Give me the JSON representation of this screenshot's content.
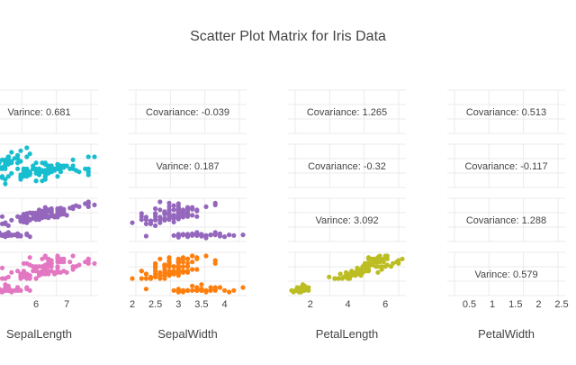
{
  "chart_data": {
    "type": "scatter",
    "title": "Scatter Plot Matrix for Iris Data",
    "variables": [
      "SepalLength",
      "SepalWidth",
      "PetalLength",
      "PetalWidth"
    ],
    "colors": {
      "row_1": "#4aa8e4",
      "row_2": "#17becf",
      "row_3": "#9467bd",
      "row_4_col_1": "#e377c2",
      "row_4_col_2": "#ff7f0e",
      "row_4_col_3": "#bcbd22"
    },
    "x_ticks": {
      "SepalLength": [
        "6",
        "7"
      ],
      "SepalWidth": [
        "2",
        "2.5",
        "3",
        "3.5",
        "4"
      ],
      "PetalLength": [
        "2",
        "4",
        "6"
      ],
      "PetalWidth": [
        "0.5",
        "1",
        "1.5",
        "2",
        "2.5"
      ]
    },
    "x_ranges": {
      "SepalLength": [
        4.3,
        7.9
      ],
      "SepalWidth": [
        2.0,
        4.4
      ],
      "PetalLength": [
        1.0,
        6.9
      ],
      "PetalWidth": [
        0.1,
        2.5
      ]
    },
    "y_ranges": {
      "SepalLength": [
        4.3,
        7.9
      ],
      "SepalWidth": [
        2.0,
        4.4
      ],
      "PetalLength": [
        1.0,
        6.9
      ],
      "PetalWidth": [
        0.1,
        2.5
      ]
    },
    "cells": [
      {
        "row": 1,
        "col": 1,
        "kind": "text",
        "text": "Varince: 0.681"
      },
      {
        "row": 1,
        "col": 2,
        "kind": "text",
        "text": "Covariance: -0.039"
      },
      {
        "row": 1,
        "col": 3,
        "kind": "text",
        "text": "Covariance: 1.265"
      },
      {
        "row": 1,
        "col": 4,
        "kind": "text",
        "text": "Covariance: 0.513"
      },
      {
        "row": 2,
        "col": 1,
        "kind": "scatter",
        "x": "SepalLength",
        "y": "SepalWidth"
      },
      {
        "row": 2,
        "col": 2,
        "kind": "text",
        "text": "Varince: 0.187"
      },
      {
        "row": 2,
        "col": 3,
        "kind": "text",
        "text": "Covariance: -0.32"
      },
      {
        "row": 2,
        "col": 4,
        "kind": "text",
        "text": "Covariance: -0.117"
      },
      {
        "row": 3,
        "col": 1,
        "kind": "scatter",
        "x": "SepalLength",
        "y": "PetalLength"
      },
      {
        "row": 3,
        "col": 2,
        "kind": "scatter",
        "x": "SepalWidth",
        "y": "PetalLength"
      },
      {
        "row": 3,
        "col": 3,
        "kind": "text",
        "text": "Varince: 3.092"
      },
      {
        "row": 3,
        "col": 4,
        "kind": "text",
        "text": "Covariance: 1.288"
      },
      {
        "row": 4,
        "col": 1,
        "kind": "scatter",
        "x": "SepalLength",
        "y": "PetalWidth"
      },
      {
        "row": 4,
        "col": 2,
        "kind": "scatter",
        "x": "SepalWidth",
        "y": "PetalWidth"
      },
      {
        "row": 4,
        "col": 3,
        "kind": "scatter",
        "x": "PetalLength",
        "y": "PetalWidth"
      },
      {
        "row": 4,
        "col": 4,
        "kind": "text",
        "text": "Varince: 0.579"
      }
    ],
    "points": [
      [
        5.1,
        3.5,
        1.4,
        0.2
      ],
      [
        4.9,
        3.0,
        1.4,
        0.2
      ],
      [
        4.7,
        3.2,
        1.3,
        0.2
      ],
      [
        4.6,
        3.1,
        1.5,
        0.2
      ],
      [
        5.0,
        3.6,
        1.4,
        0.2
      ],
      [
        5.4,
        3.9,
        1.7,
        0.4
      ],
      [
        4.6,
        3.4,
        1.4,
        0.3
      ],
      [
        5.0,
        3.4,
        1.5,
        0.2
      ],
      [
        4.4,
        2.9,
        1.4,
        0.2
      ],
      [
        4.9,
        3.1,
        1.5,
        0.1
      ],
      [
        5.4,
        3.7,
        1.5,
        0.2
      ],
      [
        4.8,
        3.4,
        1.6,
        0.2
      ],
      [
        4.8,
        3.0,
        1.4,
        0.1
      ],
      [
        4.3,
        3.0,
        1.1,
        0.1
      ],
      [
        5.8,
        4.0,
        1.2,
        0.2
      ],
      [
        5.7,
        4.4,
        1.5,
        0.4
      ],
      [
        5.4,
        3.9,
        1.3,
        0.4
      ],
      [
        5.1,
        3.5,
        1.4,
        0.3
      ],
      [
        5.7,
        3.8,
        1.7,
        0.3
      ],
      [
        5.1,
        3.8,
        1.5,
        0.3
      ],
      [
        5.4,
        3.4,
        1.7,
        0.2
      ],
      [
        5.1,
        3.7,
        1.5,
        0.4
      ],
      [
        4.6,
        3.6,
        1.0,
        0.2
      ],
      [
        5.1,
        3.3,
        1.7,
        0.5
      ],
      [
        4.8,
        3.4,
        1.9,
        0.2
      ],
      [
        5.0,
        3.0,
        1.6,
        0.2
      ],
      [
        5.0,
        3.4,
        1.6,
        0.4
      ],
      [
        5.2,
        3.5,
        1.5,
        0.2
      ],
      [
        5.2,
        3.4,
        1.4,
        0.2
      ],
      [
        4.7,
        3.2,
        1.6,
        0.2
      ],
      [
        4.8,
        3.1,
        1.6,
        0.2
      ],
      [
        5.4,
        3.4,
        1.5,
        0.4
      ],
      [
        5.2,
        4.1,
        1.5,
        0.1
      ],
      [
        5.5,
        4.2,
        1.4,
        0.2
      ],
      [
        4.9,
        3.1,
        1.5,
        0.2
      ],
      [
        5.0,
        3.2,
        1.2,
        0.2
      ],
      [
        5.5,
        3.5,
        1.3,
        0.2
      ],
      [
        4.9,
        3.6,
        1.4,
        0.1
      ],
      [
        4.4,
        3.0,
        1.3,
        0.2
      ],
      [
        5.1,
        3.4,
        1.5,
        0.2
      ],
      [
        5.0,
        3.5,
        1.3,
        0.3
      ],
      [
        4.5,
        2.3,
        1.3,
        0.3
      ],
      [
        4.4,
        3.2,
        1.3,
        0.2
      ],
      [
        5.0,
        3.5,
        1.6,
        0.6
      ],
      [
        5.1,
        3.8,
        1.9,
        0.4
      ],
      [
        4.8,
        3.0,
        1.4,
        0.3
      ],
      [
        5.1,
        3.8,
        1.6,
        0.2
      ],
      [
        4.6,
        3.2,
        1.4,
        0.2
      ],
      [
        5.3,
        3.7,
        1.5,
        0.2
      ],
      [
        5.0,
        3.3,
        1.4,
        0.2
      ],
      [
        7.0,
        3.2,
        4.7,
        1.4
      ],
      [
        6.4,
        3.2,
        4.5,
        1.5
      ],
      [
        6.9,
        3.1,
        4.9,
        1.5
      ],
      [
        5.5,
        2.3,
        4.0,
        1.3
      ],
      [
        6.5,
        2.8,
        4.6,
        1.5
      ],
      [
        5.7,
        2.8,
        4.5,
        1.3
      ],
      [
        6.3,
        3.3,
        4.7,
        1.6
      ],
      [
        4.9,
        2.4,
        3.3,
        1.0
      ],
      [
        6.6,
        2.9,
        4.6,
        1.3
      ],
      [
        5.2,
        2.7,
        3.9,
        1.4
      ],
      [
        5.0,
        2.0,
        3.5,
        1.0
      ],
      [
        5.9,
        3.0,
        4.2,
        1.5
      ],
      [
        6.0,
        2.2,
        4.0,
        1.0
      ],
      [
        6.1,
        2.9,
        4.7,
        1.4
      ],
      [
        5.6,
        2.9,
        3.6,
        1.3
      ],
      [
        6.7,
        3.1,
        4.4,
        1.4
      ],
      [
        5.6,
        3.0,
        4.5,
        1.5
      ],
      [
        5.8,
        2.7,
        4.1,
        1.0
      ],
      [
        6.2,
        2.2,
        4.5,
        1.5
      ],
      [
        5.6,
        2.5,
        3.9,
        1.1
      ],
      [
        5.9,
        3.2,
        4.8,
        1.8
      ],
      [
        6.1,
        2.8,
        4.0,
        1.3
      ],
      [
        6.3,
        2.5,
        4.9,
        1.5
      ],
      [
        6.1,
        2.8,
        4.7,
        1.2
      ],
      [
        6.4,
        2.9,
        4.3,
        1.3
      ],
      [
        6.6,
        3.0,
        4.4,
        1.4
      ],
      [
        6.8,
        2.8,
        4.8,
        1.4
      ],
      [
        6.7,
        3.0,
        5.0,
        1.7
      ],
      [
        6.0,
        2.9,
        4.5,
        1.5
      ],
      [
        5.7,
        2.6,
        3.5,
        1.0
      ],
      [
        5.5,
        2.4,
        3.8,
        1.1
      ],
      [
        5.5,
        2.4,
        3.7,
        1.0
      ],
      [
        5.8,
        2.7,
        3.9,
        1.2
      ],
      [
        6.0,
        2.7,
        5.1,
        1.6
      ],
      [
        5.4,
        3.0,
        4.5,
        1.5
      ],
      [
        6.0,
        3.4,
        4.5,
        1.6
      ],
      [
        6.7,
        3.1,
        4.7,
        1.5
      ],
      [
        6.3,
        2.3,
        4.4,
        1.3
      ],
      [
        5.6,
        3.0,
        4.1,
        1.3
      ],
      [
        5.5,
        2.5,
        4.0,
        1.3
      ],
      [
        5.5,
        2.6,
        4.4,
        1.2
      ],
      [
        6.1,
        3.0,
        4.6,
        1.4
      ],
      [
        5.8,
        2.6,
        4.0,
        1.2
      ],
      [
        5.0,
        2.3,
        3.3,
        1.0
      ],
      [
        5.6,
        2.7,
        4.2,
        1.3
      ],
      [
        5.7,
        3.0,
        4.2,
        1.2
      ],
      [
        5.7,
        2.9,
        4.2,
        1.3
      ],
      [
        6.2,
        2.9,
        4.3,
        1.3
      ],
      [
        5.1,
        2.5,
        3.0,
        1.1
      ],
      [
        5.7,
        2.8,
        4.1,
        1.3
      ],
      [
        6.3,
        3.3,
        6.0,
        2.5
      ],
      [
        5.8,
        2.7,
        5.1,
        1.9
      ],
      [
        7.1,
        3.0,
        5.9,
        2.1
      ],
      [
        6.3,
        2.9,
        5.6,
        1.8
      ],
      [
        6.5,
        3.0,
        5.8,
        2.2
      ],
      [
        7.6,
        3.0,
        6.6,
        2.1
      ],
      [
        4.9,
        2.5,
        4.5,
        1.7
      ],
      [
        7.3,
        2.9,
        6.3,
        1.8
      ],
      [
        6.7,
        2.5,
        5.8,
        1.8
      ],
      [
        7.2,
        3.6,
        6.1,
        2.5
      ],
      [
        6.5,
        3.2,
        5.1,
        2.0
      ],
      [
        6.4,
        2.7,
        5.3,
        1.9
      ],
      [
        6.8,
        3.0,
        5.5,
        2.1
      ],
      [
        5.7,
        2.5,
        5.0,
        2.0
      ],
      [
        5.8,
        2.8,
        5.1,
        2.4
      ],
      [
        6.4,
        3.2,
        5.3,
        2.3
      ],
      [
        6.5,
        3.0,
        5.5,
        1.8
      ],
      [
        7.7,
        3.8,
        6.7,
        2.2
      ],
      [
        7.7,
        2.6,
        6.9,
        2.3
      ],
      [
        6.0,
        2.2,
        5.0,
        1.5
      ],
      [
        6.9,
        3.2,
        5.7,
        2.3
      ],
      [
        5.6,
        2.8,
        4.9,
        2.0
      ],
      [
        7.7,
        2.8,
        6.7,
        2.0
      ],
      [
        6.3,
        2.7,
        4.9,
        1.8
      ],
      [
        6.7,
        3.3,
        5.7,
        2.1
      ],
      [
        7.2,
        3.2,
        6.0,
        1.8
      ],
      [
        6.2,
        2.8,
        4.8,
        1.8
      ],
      [
        6.1,
        3.0,
        4.9,
        1.8
      ],
      [
        6.4,
        2.8,
        5.6,
        2.1
      ],
      [
        7.2,
        3.0,
        5.8,
        1.6
      ],
      [
        7.4,
        2.8,
        6.1,
        1.9
      ],
      [
        7.9,
        3.8,
        6.4,
        2.0
      ],
      [
        6.4,
        2.8,
        5.6,
        2.2
      ],
      [
        6.3,
        2.8,
        5.1,
        1.5
      ],
      [
        6.1,
        2.6,
        5.6,
        1.4
      ],
      [
        7.7,
        3.0,
        6.1,
        2.3
      ],
      [
        6.3,
        3.4,
        5.6,
        2.4
      ],
      [
        6.4,
        3.1,
        5.5,
        1.8
      ],
      [
        6.0,
        3.0,
        4.8,
        1.8
      ],
      [
        6.9,
        3.1,
        5.4,
        2.1
      ],
      [
        6.7,
        3.1,
        5.6,
        2.4
      ],
      [
        6.9,
        3.1,
        5.1,
        2.3
      ],
      [
        5.8,
        2.7,
        5.1,
        1.9
      ],
      [
        6.8,
        3.2,
        5.9,
        2.3
      ],
      [
        6.7,
        3.3,
        5.7,
        2.5
      ],
      [
        6.7,
        3.0,
        5.2,
        2.3
      ],
      [
        6.3,
        2.5,
        5.0,
        1.9
      ],
      [
        6.5,
        3.0,
        5.2,
        2.0
      ],
      [
        6.2,
        3.4,
        5.4,
        2.3
      ],
      [
        5.9,
        3.0,
        5.1,
        1.8
      ]
    ]
  }
}
